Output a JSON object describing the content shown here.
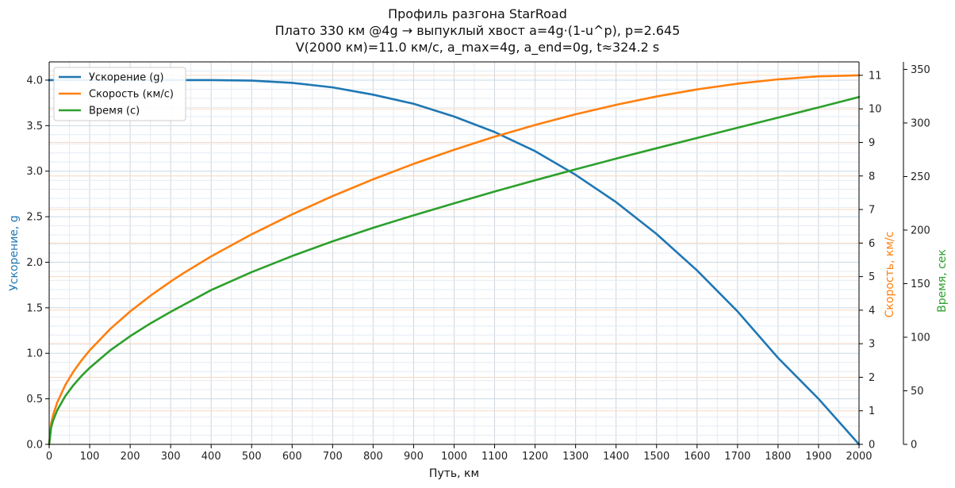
{
  "colors": {
    "acceleration": "#1f77b4",
    "velocity": "#ff7f0e",
    "time": "#2ca02c"
  },
  "chart_data": {
    "type": "line",
    "title": [
      "Профиль разгона StarRoad",
      "Плато 330 км @4g → выпуклый хвост a=4g·(1-u^p), p=2.645",
      "V(2000 км)=11.0 км/с, a_max=4g, a_end=0g, t≈324.2 s"
    ],
    "xlabel": "Путь, км",
    "ylabel_left": "Ускорение, g",
    "ylabel_right1": "Скорость, км/с",
    "ylabel_right2": "Время, сек",
    "xlim": [
      0,
      2000
    ],
    "ylim_left": [
      0,
      4.2
    ],
    "ylim_right1": [
      0,
      11.4
    ],
    "ylim_right2": [
      0,
      357
    ],
    "x_ticks": [
      0,
      100,
      200,
      300,
      400,
      500,
      600,
      700,
      800,
      900,
      1000,
      1100,
      1200,
      1300,
      1400,
      1500,
      1600,
      1700,
      1800,
      1900,
      2000
    ],
    "y_left_ticks": [
      "0.0",
      "0.5",
      "1.0",
      "1.5",
      "2.0",
      "2.5",
      "3.0",
      "3.5",
      "4.0"
    ],
    "y_right1_ticks": [
      0,
      1,
      2,
      3,
      4,
      5,
      6,
      7,
      8,
      9,
      10,
      11
    ],
    "y_right2_ticks": [
      0,
      50,
      100,
      150,
      200,
      250,
      300,
      350
    ],
    "grid": true,
    "legend_position": "top-left",
    "x": [
      0,
      5,
      10,
      20,
      40,
      60,
      80,
      100,
      150,
      200,
      250,
      300,
      330,
      400,
      500,
      600,
      700,
      800,
      900,
      1000,
      1100,
      1200,
      1300,
      1400,
      1500,
      1600,
      1700,
      1800,
      1900,
      2000
    ],
    "series": [
      {
        "name": "Ускорение (g)",
        "axis": "left",
        "values": [
          4.0,
          4.0,
          4.0,
          4.0,
          4.0,
          4.0,
          4.0,
          4.0,
          4.0,
          4.0,
          4.0,
          4.0,
          4.0,
          4.0,
          3.995,
          3.97,
          3.92,
          3.84,
          3.74,
          3.6,
          3.43,
          3.22,
          2.96,
          2.66,
          2.31,
          1.91,
          1.46,
          0.95,
          0.5,
          0.0
        ]
      },
      {
        "name": "Скорость (км/с)",
        "axis": "right1",
        "values": [
          0,
          0.626,
          0.886,
          1.253,
          1.772,
          2.17,
          2.506,
          2.801,
          3.431,
          3.962,
          4.429,
          4.852,
          5.09,
          5.603,
          6.261,
          6.855,
          7.4,
          7.9,
          8.36,
          8.78,
          9.17,
          9.52,
          9.84,
          10.12,
          10.37,
          10.58,
          10.75,
          10.88,
          10.97,
          11.0
        ]
      },
      {
        "name": "Время (с)",
        "axis": "right2",
        "values": [
          0,
          16,
          22.6,
          31.9,
          45.2,
          55.3,
          63.9,
          71.4,
          87.5,
          101,
          112.9,
          123.7,
          129.8,
          144,
          160.8,
          175.8,
          189.5,
          202.1,
          213.8,
          225,
          236,
          246.5,
          256.7,
          266.7,
          276.4,
          286,
          295.5,
          305,
          314.5,
          324.2
        ]
      }
    ]
  }
}
